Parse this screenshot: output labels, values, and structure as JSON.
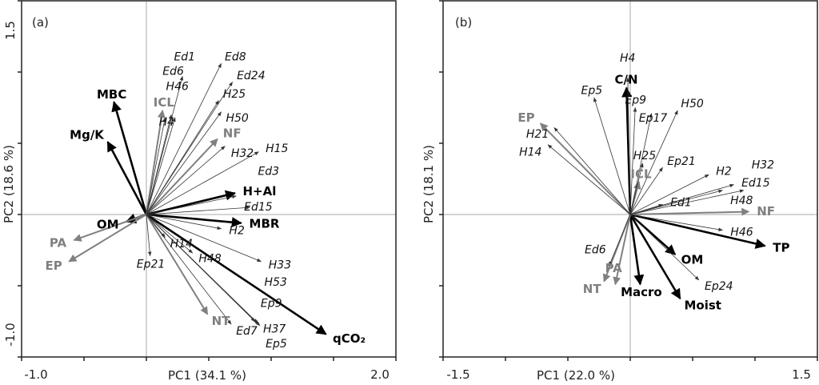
{
  "colors": {
    "variable": "#000000",
    "landuse": "#808080",
    "species": "#333333",
    "grid": "#aaaaaa"
  },
  "chart_data": [
    {
      "type": "scatter",
      "subtype": "pca-biplot",
      "panel": "(a)",
      "xlabel": "PC1 (34.1 %)",
      "ylabel": "PC2 (18.6 %)",
      "xlim": [
        -1.0,
        2.0
      ],
      "ylim": [
        -1.0,
        1.5
      ],
      "xtick_labels": [
        "-1.0",
        "2.0"
      ],
      "ytick_labels": [
        "1.5",
        "-1.0"
      ],
      "vectors": [
        {
          "label": "MBC",
          "kind": "variable",
          "x": -0.26,
          "y": 0.79
        },
        {
          "label": "Mg/K",
          "kind": "variable",
          "x": -0.31,
          "y": 0.51
        },
        {
          "label": "OM",
          "kind": "variable",
          "x": -0.16,
          "y": -0.05
        },
        {
          "label": "H+Al",
          "kind": "variable",
          "x": 0.71,
          "y": 0.15
        },
        {
          "label": "MBR",
          "kind": "variable",
          "x": 0.76,
          "y": -0.06
        },
        {
          "label": "qCO₂",
          "kind": "variable",
          "x": 1.44,
          "y": -0.84
        },
        {
          "label": "PA",
          "kind": "landuse",
          "x": -0.58,
          "y": -0.18
        },
        {
          "label": "EP",
          "kind": "landuse",
          "x": -0.62,
          "y": -0.33
        },
        {
          "label": "ICL",
          "kind": "landuse",
          "x": 0.13,
          "y": 0.73
        },
        {
          "label": "NF",
          "kind": "landuse",
          "x": 0.57,
          "y": 0.53
        },
        {
          "label": "NT",
          "kind": "landuse",
          "x": 0.49,
          "y": -0.7
        },
        {
          "label": "H4",
          "kind": "species",
          "x": 0.15,
          "y": 0.68
        },
        {
          "label": "H46",
          "kind": "species",
          "x": 0.23,
          "y": 0.68
        },
        {
          "label": "Ed6",
          "kind": "species",
          "x": 0.2,
          "y": 0.7
        },
        {
          "label": "Ed1",
          "kind": "species",
          "x": 0.29,
          "y": 0.97
        },
        {
          "label": "Ed8",
          "kind": "species",
          "x": 0.6,
          "y": 1.06
        },
        {
          "label": "Ed24",
          "kind": "species",
          "x": 0.69,
          "y": 0.93
        },
        {
          "label": "H25",
          "kind": "species",
          "x": 0.58,
          "y": 0.8
        },
        {
          "label": "H50",
          "kind": "species",
          "x": 0.6,
          "y": 0.72
        },
        {
          "label": "H32",
          "kind": "species",
          "x": 0.63,
          "y": 0.48
        },
        {
          "label": "H15",
          "kind": "species",
          "x": 0.9,
          "y": 0.44
        },
        {
          "label": "Ed15",
          "kind": "species",
          "x": 0.72,
          "y": 0.13
        },
        {
          "label": "Ed3",
          "kind": "species",
          "x": 0.83,
          "y": 0.05
        },
        {
          "label": "H2",
          "kind": "species",
          "x": 0.6,
          "y": -0.1
        },
        {
          "label": "H33",
          "kind": "species",
          "x": 0.92,
          "y": -0.33
        },
        {
          "label": "H37",
          "kind": "species",
          "x": 0.89,
          "y": -0.76
        },
        {
          "label": "Ep9",
          "kind": "species",
          "x": 0.87,
          "y": -0.75
        },
        {
          "label": "H53",
          "kind": "species",
          "x": 0.9,
          "y": -0.77
        },
        {
          "label": "Ep5",
          "kind": "species",
          "x": 0.91,
          "y": -0.78
        },
        {
          "label": "Ed7",
          "kind": "species",
          "x": 0.68,
          "y": -0.77
        },
        {
          "label": "H14",
          "kind": "species",
          "x": 0.15,
          "y": -0.16
        },
        {
          "label": "H48",
          "kind": "species",
          "x": 0.37,
          "y": -0.27
        },
        {
          "label": "Ep21",
          "kind": "species",
          "x": 0.03,
          "y": -0.29
        }
      ]
    },
    {
      "type": "scatter",
      "subtype": "pca-biplot",
      "panel": "(b)",
      "xlabel": "PC1 (22.0 %)",
      "ylabel": "PC2 (18.1 %)",
      "xlim": [
        -1.5,
        1.5
      ],
      "ylim": [
        -1.0,
        1.5
      ],
      "xtick_labels": [
        "-1.5",
        "1.5"
      ],
      "ytick_labels": [],
      "vectors": [
        {
          "label": "C/N",
          "kind": "variable",
          "x": -0.03,
          "y": 0.89
        },
        {
          "label": "OM",
          "kind": "variable",
          "x": 0.36,
          "y": -0.28
        },
        {
          "label": "TP",
          "kind": "variable",
          "x": 1.08,
          "y": -0.22
        },
        {
          "label": "Macro",
          "kind": "variable",
          "x": 0.08,
          "y": -0.49
        },
        {
          "label": "Moist",
          "kind": "variable",
          "x": 0.4,
          "y": -0.59
        },
        {
          "label": "EP",
          "kind": "landuse",
          "x": -0.72,
          "y": 0.64
        },
        {
          "label": "ICL",
          "kind": "landuse",
          "x": 0.07,
          "y": 0.23
        },
        {
          "label": "NF",
          "kind": "landuse",
          "x": 0.95,
          "y": 0.02
        },
        {
          "label": "NT",
          "kind": "landuse",
          "x": -0.21,
          "y": -0.47
        },
        {
          "label": "PA",
          "kind": "landuse",
          "x": -0.12,
          "y": -0.49
        },
        {
          "label": "H4",
          "kind": "species",
          "x": -0.02,
          "y": 0.96
        },
        {
          "label": "Ep5",
          "kind": "species",
          "x": -0.29,
          "y": 0.82
        },
        {
          "label": "Ep9",
          "kind": "species",
          "x": 0.04,
          "y": 0.75
        },
        {
          "label": "Ep17",
          "kind": "species",
          "x": 0.17,
          "y": 0.71
        },
        {
          "label": "H50",
          "kind": "species",
          "x": 0.38,
          "y": 0.73
        },
        {
          "label": "H21",
          "kind": "species",
          "x": -0.61,
          "y": 0.61
        },
        {
          "label": "H14",
          "kind": "species",
          "x": -0.66,
          "y": 0.49
        },
        {
          "label": "H25",
          "kind": "species",
          "x": 0.1,
          "y": 0.36
        },
        {
          "label": "Ep21",
          "kind": "species",
          "x": 0.26,
          "y": 0.33
        },
        {
          "label": "H2",
          "kind": "species",
          "x": 0.63,
          "y": 0.28
        },
        {
          "label": "Ed15",
          "kind": "species",
          "x": 0.83,
          "y": 0.21
        },
        {
          "label": "H48",
          "kind": "species",
          "x": 0.74,
          "y": 0.17
        },
        {
          "label": "H32",
          "kind": "species",
          "x": 0.91,
          "y": 0.17
        },
        {
          "label": "Ed1",
          "kind": "species",
          "x": 0.26,
          "y": 0.07
        },
        {
          "label": "H46",
          "kind": "species",
          "x": 0.74,
          "y": -0.11
        },
        {
          "label": "Ep24",
          "kind": "species",
          "x": 0.55,
          "y": -0.46
        },
        {
          "label": "Ed6",
          "kind": "species",
          "x": -0.17,
          "y": -0.36
        }
      ]
    }
  ]
}
